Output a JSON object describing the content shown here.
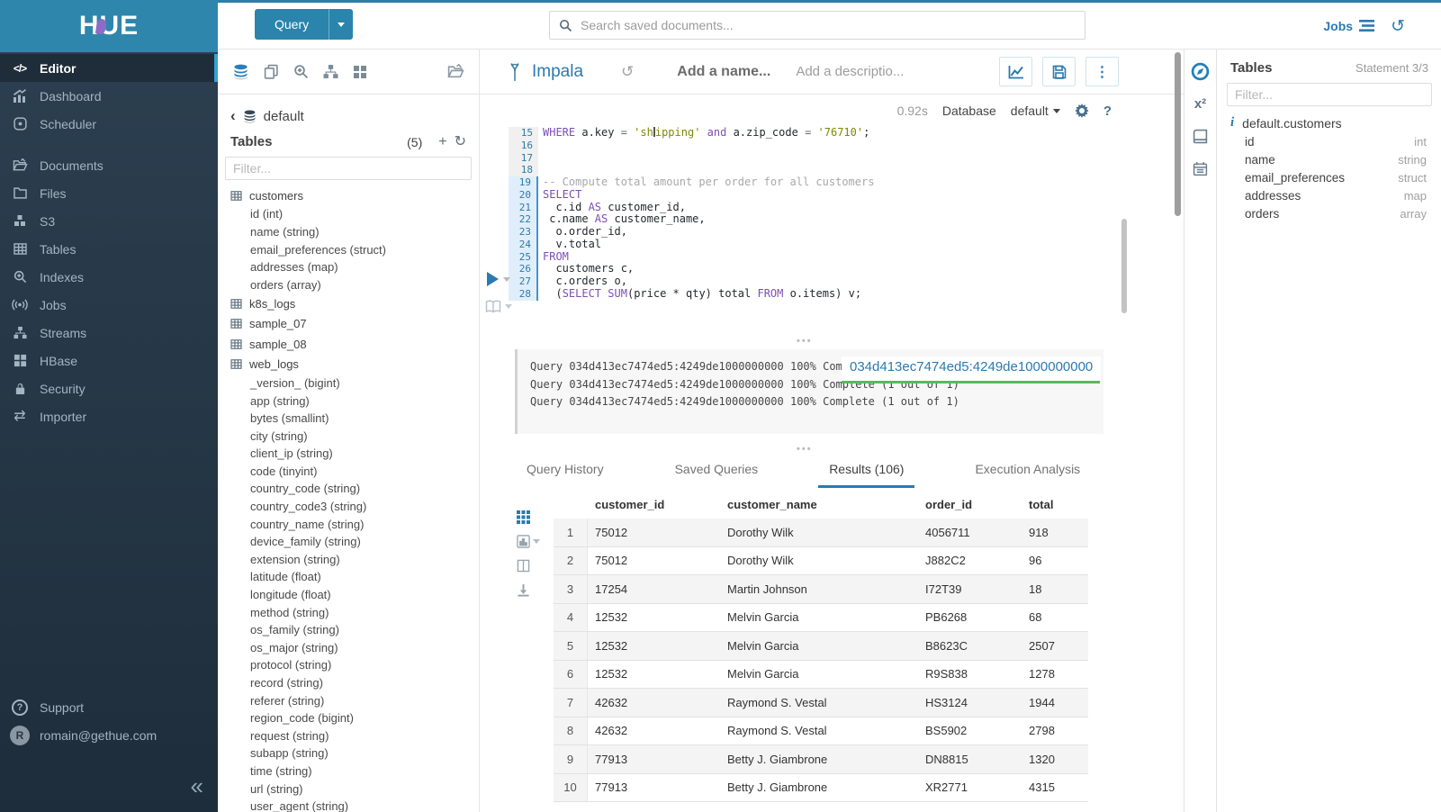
{
  "topbar": {
    "logo": "HUE",
    "query_button": "Query",
    "search_placeholder": "Search saved documents...",
    "jobs_label": "Jobs"
  },
  "sidebar": {
    "items": [
      {
        "label": "Editor",
        "icon": "code-icon",
        "active": true,
        "gap": false
      },
      {
        "label": "Dashboard",
        "icon": "dashboard-icon",
        "active": false,
        "gap": false
      },
      {
        "label": "Scheduler",
        "icon": "scheduler-icon",
        "active": false,
        "gap": false
      },
      {
        "label": "Documents",
        "icon": "documents-icon",
        "active": false,
        "gap": true
      },
      {
        "label": "Files",
        "icon": "files-icon",
        "active": false,
        "gap": false
      },
      {
        "label": "S3",
        "icon": "s3-icon",
        "active": false,
        "gap": false
      },
      {
        "label": "Tables",
        "icon": "tables-icon",
        "active": false,
        "gap": false
      },
      {
        "label": "Indexes",
        "icon": "indexes-icon",
        "active": false,
        "gap": false
      },
      {
        "label": "Jobs",
        "icon": "jobs-icon",
        "active": false,
        "gap": false
      },
      {
        "label": "Streams",
        "icon": "streams-icon",
        "active": false,
        "gap": false
      },
      {
        "label": "HBase",
        "icon": "hbase-icon",
        "active": false,
        "gap": false
      },
      {
        "label": "Security",
        "icon": "security-icon",
        "active": false,
        "gap": false
      },
      {
        "label": "Importer",
        "icon": "importer-icon",
        "active": false,
        "gap": false
      }
    ],
    "support_label": "Support",
    "user_email": "romain@gethue.com",
    "avatar_letter": "R"
  },
  "left_assist": {
    "breadcrumb_db": "default",
    "tables_label": "Tables",
    "tables_count": "(5)",
    "filter_placeholder": "Filter...",
    "tables": [
      {
        "name": "customers",
        "columns": [
          "id (int)",
          "name (string)",
          "email_preferences (struct)",
          "addresses (map)",
          "orders (array)"
        ]
      },
      {
        "name": "k8s_logs",
        "columns": []
      },
      {
        "name": "sample_07",
        "columns": []
      },
      {
        "name": "sample_08",
        "columns": []
      },
      {
        "name": "web_logs",
        "columns": [
          "_version_ (bigint)",
          "app (string)",
          "bytes (smallint)",
          "city (string)",
          "client_ip (string)",
          "code (tinyint)",
          "country_code (string)",
          "country_code3 (string)",
          "country_name (string)",
          "device_family (string)",
          "extension (string)",
          "latitude (float)",
          "longitude (float)",
          "method (string)",
          "os_family (string)",
          "os_major (string)",
          "protocol (string)",
          "record (string)",
          "referer (string)",
          "region_code (bigint)",
          "request (string)",
          "subapp (string)",
          "time (string)",
          "url (string)",
          "user_agent (string)"
        ]
      }
    ]
  },
  "editor": {
    "engine": "Impala",
    "name_placeholder": "Add a name...",
    "description_placeholder": "Add a descriptio...",
    "duration": "0.92s",
    "database_label": "Database",
    "database_value": "default",
    "code_lines": [
      {
        "n": "15",
        "active": false,
        "tokens": [
          {
            "t": "kw",
            "s": "WHERE"
          },
          {
            "t": "pl",
            "s": " a.key "
          },
          {
            "t": "op",
            "s": "="
          },
          {
            "t": "pl",
            "s": " "
          },
          {
            "t": "str",
            "s": "'sh"
          },
          {
            "t": "cursor",
            "s": ""
          },
          {
            "t": "str",
            "s": "ipping'"
          },
          {
            "t": "pl",
            "s": " "
          },
          {
            "t": "kw",
            "s": "and"
          },
          {
            "t": "pl",
            "s": " a.zip_code "
          },
          {
            "t": "op",
            "s": "="
          },
          {
            "t": "pl",
            "s": " "
          },
          {
            "t": "str",
            "s": "'76710'"
          },
          {
            "t": "pl",
            "s": ";"
          }
        ]
      },
      {
        "n": "16",
        "active": false,
        "tokens": []
      },
      {
        "n": "17",
        "active": false,
        "tokens": []
      },
      {
        "n": "18",
        "active": false,
        "tokens": []
      },
      {
        "n": "19",
        "active": true,
        "tokens": [
          {
            "t": "cm",
            "s": "-- Compute total amount per order for all customers"
          }
        ]
      },
      {
        "n": "20",
        "active": true,
        "tokens": [
          {
            "t": "kw",
            "s": "SELECT"
          }
        ]
      },
      {
        "n": "21",
        "active": true,
        "tokens": [
          {
            "t": "pl",
            "s": "  c.id "
          },
          {
            "t": "kw",
            "s": "AS"
          },
          {
            "t": "pl",
            "s": " customer_id,"
          }
        ]
      },
      {
        "n": "22",
        "active": true,
        "tokens": [
          {
            "t": "pl",
            "s": " c.name "
          },
          {
            "t": "kw",
            "s": "AS"
          },
          {
            "t": "pl",
            "s": " customer_name,"
          }
        ]
      },
      {
        "n": "23",
        "active": true,
        "tokens": [
          {
            "t": "pl",
            "s": "  o.order_id,"
          }
        ]
      },
      {
        "n": "24",
        "active": true,
        "tokens": [
          {
            "t": "pl",
            "s": "  v.total"
          }
        ]
      },
      {
        "n": "25",
        "active": true,
        "tokens": [
          {
            "t": "kw",
            "s": "FROM"
          }
        ]
      },
      {
        "n": "26",
        "active": true,
        "tokens": [
          {
            "t": "pl",
            "s": "  customers c,"
          }
        ]
      },
      {
        "n": "27",
        "active": true,
        "tokens": [
          {
            "t": "pl",
            "s": "  c.orders o,"
          }
        ]
      },
      {
        "n": "28",
        "active": true,
        "tokens": [
          {
            "t": "pl",
            "s": "  ("
          },
          {
            "t": "kw",
            "s": "SELECT"
          },
          {
            "t": "pl",
            "s": " "
          },
          {
            "t": "kw",
            "s": "SUM"
          },
          {
            "t": "pl",
            "s": "(price * qty) total "
          },
          {
            "t": "kw",
            "s": "FROM"
          },
          {
            "t": "pl",
            "s": " o.items) v;"
          }
        ]
      }
    ],
    "log_lines": [
      "Query 034d413ec7474ed5:4249de1000000000 100% Complete (1 out of 1)",
      "Query 034d413ec7474ed5:4249de1000000000 100% Complete (1 out of 1)",
      "Query 034d413ec7474ed5:4249de1000000000 100% Complete (1 out of 1)"
    ],
    "tooltip": "034d413ec7474ed5:4249de1000000000"
  },
  "result_tabs": [
    {
      "label": "Query History",
      "active": false
    },
    {
      "label": "Saved Queries",
      "active": false
    },
    {
      "label": "Results (106)",
      "active": true
    },
    {
      "label": "Execution Analysis",
      "active": false
    }
  ],
  "results": {
    "columns": [
      "customer_id",
      "customer_name",
      "order_id",
      "total"
    ],
    "rows": [
      [
        "1",
        "75012",
        "Dorothy Wilk",
        "4056711",
        "918"
      ],
      [
        "2",
        "75012",
        "Dorothy Wilk",
        "J882C2",
        "96"
      ],
      [
        "3",
        "17254",
        "Martin Johnson",
        "I72T39",
        "18"
      ],
      [
        "4",
        "12532",
        "Melvin Garcia",
        "PB6268",
        "68"
      ],
      [
        "5",
        "12532",
        "Melvin Garcia",
        "B8623C",
        "2507"
      ],
      [
        "6",
        "12532",
        "Melvin Garcia",
        "R9S838",
        "1278"
      ],
      [
        "7",
        "42632",
        "Raymond S. Vestal",
        "HS3124",
        "1944"
      ],
      [
        "8",
        "42632",
        "Raymond S. Vestal",
        "BS5902",
        "2798"
      ],
      [
        "9",
        "77913",
        "Betty J. Giambrone",
        "DN8815",
        "1320"
      ],
      [
        "10",
        "77913",
        "Betty J. Giambrone",
        "XR2771",
        "4315"
      ]
    ]
  },
  "right_assist": {
    "title": "Tables",
    "statement": "Statement 3/3",
    "filter_placeholder": "Filter...",
    "table_name": "default.customers",
    "columns": [
      {
        "name": "id",
        "type": "int"
      },
      {
        "name": "name",
        "type": "string"
      },
      {
        "name": "email_preferences",
        "type": "struct"
      },
      {
        "name": "addresses",
        "type": "map"
      },
      {
        "name": "orders",
        "type": "array"
      }
    ]
  },
  "colors": {
    "accent": "#2b80a8",
    "link": "#2a7ab0",
    "keyword": "#7d4fb3",
    "string": "#7a8c00",
    "progress_green": "#5cb85c"
  }
}
